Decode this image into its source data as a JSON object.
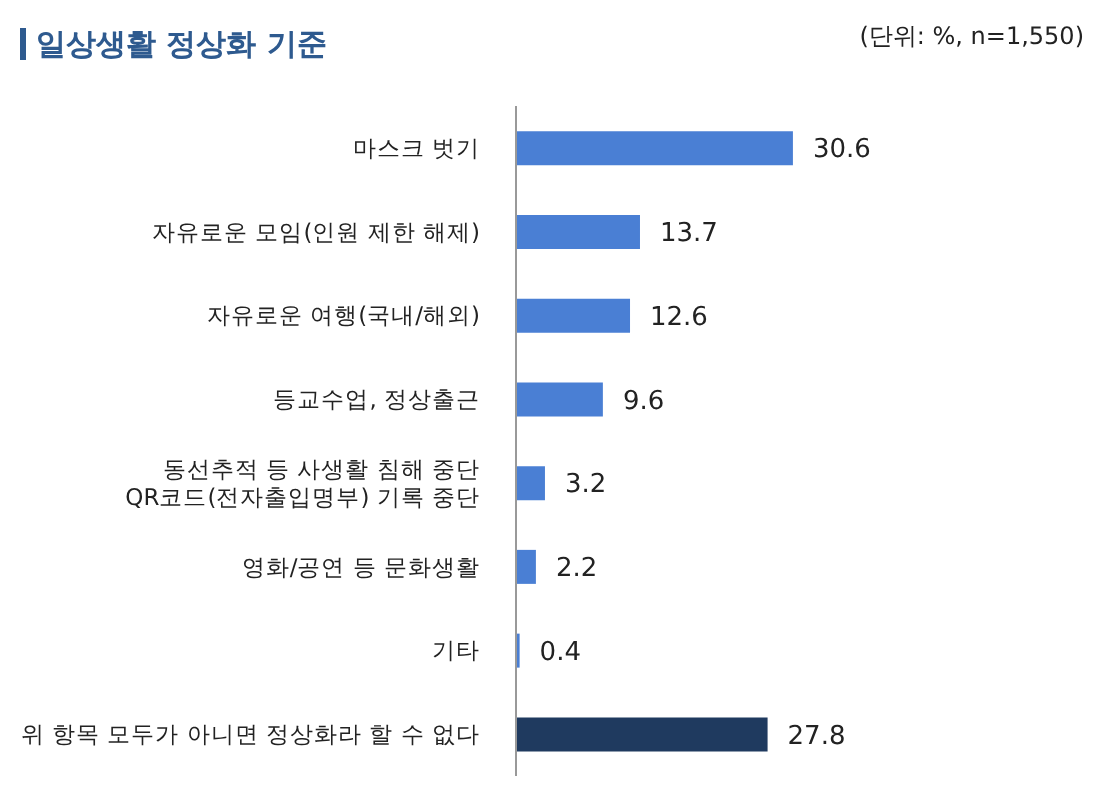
{
  "chart_data": {
    "type": "bar",
    "orientation": "horizontal",
    "title": "일상생활 정상화 기준",
    "annotations": [
      "(단위: %, n=1,550)"
    ],
    "categories": [
      "마스크 벗기",
      "자유로운 모임(인원 제한 해제)",
      "자유로운 여행(국내/해외)",
      "등교수업, 정상출근",
      "동선추적 등 사생활 침해 중단\nQR코드(전자출입명부) 기록 중단",
      "영화/공연 등 문화생활",
      "기타",
      "위 항목 모두가 아니면 정상화라 할 수 없다"
    ],
    "values": [
      30.6,
      13.7,
      12.6,
      9.6,
      3.2,
      2.2,
      0.4,
      27.8
    ],
    "colors": [
      "#4a7fd4",
      "#4a7fd4",
      "#4a7fd4",
      "#4a7fd4",
      "#4a7fd4",
      "#4a7fd4",
      "#4a7fd4",
      "#1f3a5f"
    ],
    "data_labels": true
  }
}
